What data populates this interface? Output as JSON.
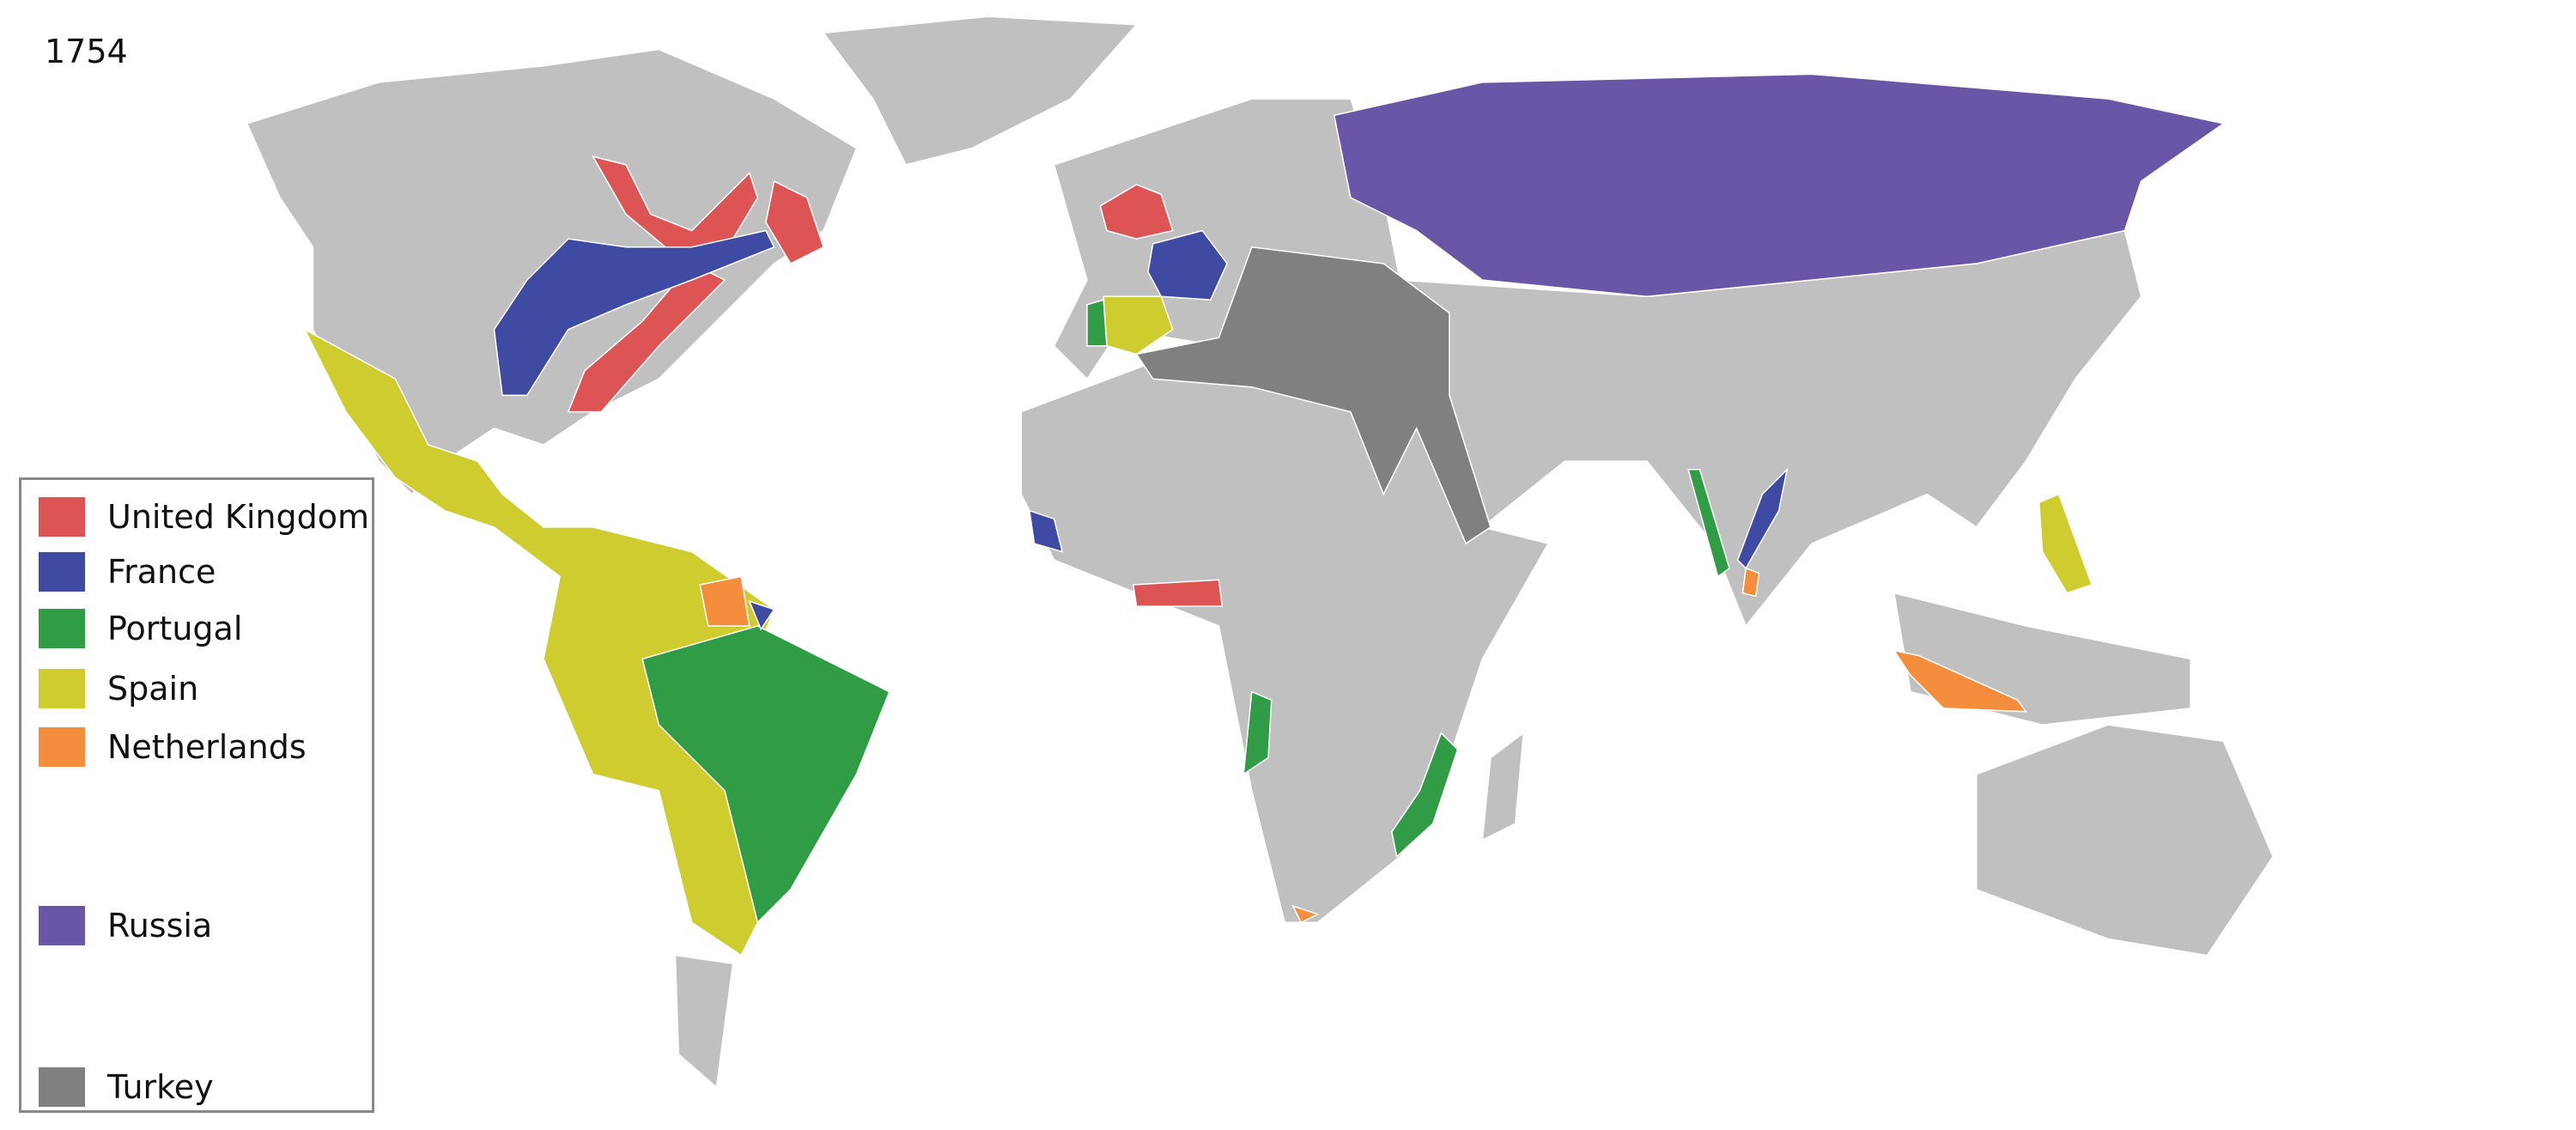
{
  "title": "1754",
  "land_color": "#c0c0c0",
  "legend": [
    {
      "key": "uk",
      "label": "United Kingdom",
      "color": "#dc5454"
    },
    {
      "key": "france",
      "label": "France",
      "color": "#3f4ba3"
    },
    {
      "key": "portugal",
      "label": "Portugal",
      "color": "#309c45"
    },
    {
      "key": "spain",
      "label": "Spain",
      "color": "#cfcc30"
    },
    {
      "key": "netherlands",
      "label": "Netherlands",
      "color": "#f58e3c"
    },
    {
      "key": "russia",
      "label": "Russia",
      "color": "#6a56a6"
    },
    {
      "key": "turkey",
      "label": "Turkey",
      "color": "#808080"
    }
  ]
}
